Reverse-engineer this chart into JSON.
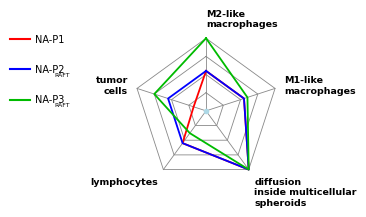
{
  "categories": [
    "M2-like\nmacrophages",
    "M1-like\nmacrophages",
    "diffusion\ninside multicellular\nspheroids",
    "lymphocytes",
    "tumor\ncells"
  ],
  "n_rings": 4,
  "series": [
    {
      "name": "NA-P1",
      "name_main": "NA-P1",
      "name_sub": "",
      "color": "#ff0000",
      "values": [
        0.55,
        0.55,
        1.0,
        0.55,
        0.18
      ]
    },
    {
      "name": "NA-P2RAFT",
      "name_main": "NA-P2",
      "name_sub": "RAFT",
      "color": "#0000ff",
      "values": [
        0.55,
        0.55,
        1.0,
        0.55,
        0.55
      ]
    },
    {
      "name": "NA-P3RAFT",
      "name_main": "NA-P3",
      "name_sub": "RAFT",
      "color": "#00bb00",
      "values": [
        1.0,
        0.6,
        1.0,
        0.38,
        0.75
      ]
    }
  ],
  "background_color": "#ffffff",
  "grid_color": "#888888",
  "label_fontsize": 6.8,
  "legend_fontsize": 7.0
}
